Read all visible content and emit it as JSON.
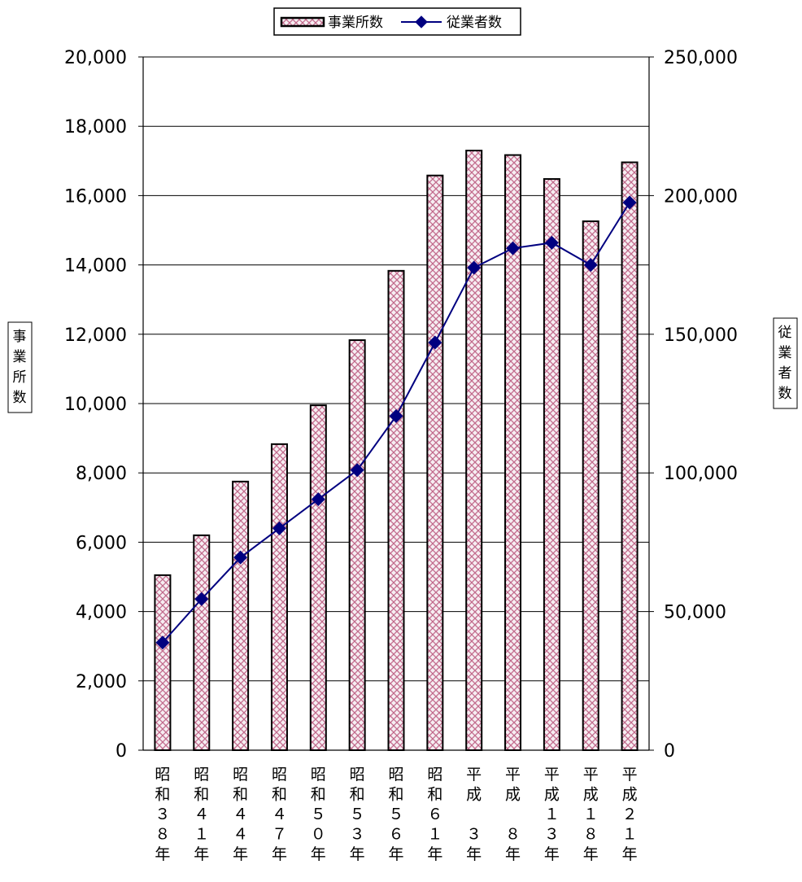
{
  "chart_data": {
    "type": "bar",
    "categories": [
      "昭和38年",
      "昭和41年",
      "昭和44年",
      "昭和47年",
      "昭和50年",
      "昭和53年",
      "昭和56年",
      "昭和61年",
      "平成3年",
      "平成8年",
      "平成13年",
      "平成18年",
      "平成21年"
    ],
    "category_lines": [
      [
        "昭",
        "和",
        "３",
        "８",
        "年"
      ],
      [
        "昭",
        "和",
        "４",
        "１",
        "年"
      ],
      [
        "昭",
        "和",
        "４",
        "４",
        "年"
      ],
      [
        "昭",
        "和",
        "４",
        "７",
        "年"
      ],
      [
        "昭",
        "和",
        "５",
        "０",
        "年"
      ],
      [
        "昭",
        "和",
        "５",
        "３",
        "年"
      ],
      [
        "昭",
        "和",
        "５",
        "６",
        "年"
      ],
      [
        "昭",
        "和",
        "６",
        "１",
        "年"
      ],
      [
        "平",
        "成",
        "",
        "３",
        "年"
      ],
      [
        "平",
        "成",
        "",
        "８",
        "年"
      ],
      [
        "平",
        "成",
        "１",
        "３",
        "年"
      ],
      [
        "平",
        "成",
        "１",
        "８",
        "年"
      ],
      [
        "平",
        "成",
        "２",
        "１",
        "年"
      ]
    ],
    "series": [
      {
        "name": "事業所数",
        "type": "bar",
        "axis": "left",
        "values": [
          5050,
          6200,
          7750,
          8830,
          9950,
          11830,
          13830,
          16580,
          17300,
          17170,
          16480,
          15260,
          16960
        ]
      },
      {
        "name": "従業者数",
        "type": "line",
        "axis": "right",
        "values": [
          38800,
          54500,
          69500,
          80000,
          90500,
          101000,
          120500,
          147000,
          174000,
          181000,
          183000,
          175000,
          197500
        ]
      }
    ],
    "ylabel_left": "事業所数",
    "ylabel_right": "従業者数",
    "ylim_left": [
      0,
      20000
    ],
    "ylim_right": [
      0,
      250000
    ],
    "yticks_left": [
      "0",
      "2,000",
      "4,000",
      "6,000",
      "8,000",
      "10,000",
      "12,000",
      "14,000",
      "16,000",
      "18,000",
      "20,000"
    ],
    "yticks_right": [
      "0",
      "50,000",
      "100,000",
      "150,000",
      "200,000",
      "250,000"
    ],
    "grid": true,
    "legend_position": "top-center",
    "colors": {
      "bar_fill": "#f6eef2",
      "bar_hatch": "#c26a8c",
      "bar_edge": "#000000",
      "line": "#000080",
      "marker": "#000080"
    }
  }
}
